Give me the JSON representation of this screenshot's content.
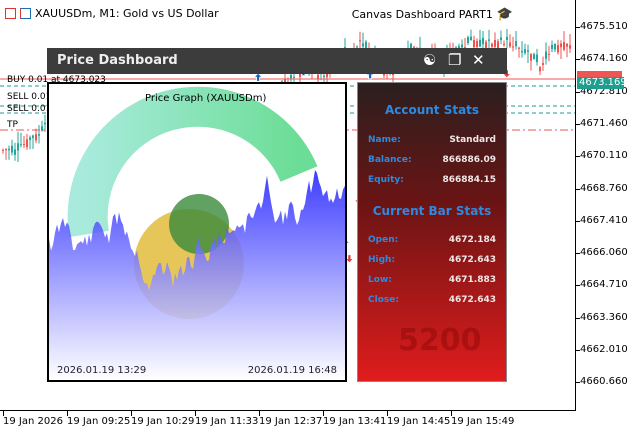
{
  "chart": {
    "symbol_title": "XAUUSDm, M1:  Gold vs US Dollar",
    "indicator_title": "Canvas Dashboard PART1",
    "price_labels": [
      "4675.510",
      "4674.160",
      "4672.810",
      "4671.460",
      "4670.110",
      "4668.760",
      "4667.410",
      "4666.060",
      "4664.710",
      "4663.360",
      "4662.010",
      "4660.660"
    ],
    "time_labels": [
      "19 Jan 2026",
      "19 Jan 09:25",
      "19 Jan 10:29",
      "19 Jan 11:33",
      "19 Jan 12:37",
      "19 Jan 13:41",
      "19 Jan 14:45",
      "19 Jan 15:49"
    ],
    "current_price": "4673.169",
    "levels": {
      "buy": "BUY 0.01 at 4673.023",
      "sell1": "SELL 0.01 at 4672.175",
      "sell2": "SELL 0.01 at 4671.868",
      "tp": "TP"
    },
    "colors": {
      "bull": "#26a69a",
      "bear": "#ef5350",
      "buy_arrow": "#1565c0",
      "sell_arrow": "#e53935"
    }
  },
  "dashboard": {
    "title": "Price Dashboard",
    "icons": [
      "theme-toggle-icon",
      "maximize-icon",
      "close-icon"
    ],
    "graph": {
      "title": "Price Graph (XAUUSDm)",
      "start": "2026.01.19 13:29",
      "end": "2026.01.19 16:48"
    },
    "account": {
      "heading": "Account Stats",
      "name_label": "Name:",
      "name": "Standard",
      "balance_label": "Balance:",
      "balance": "866886.09",
      "equity_label": "Equity:",
      "equity": "866884.15"
    },
    "bar": {
      "heading": "Current Bar Stats",
      "open_label": "Open:",
      "open": "4672.184",
      "high_label": "High:",
      "high": "4672.643",
      "low_label": "Low:",
      "low": "4671.883",
      "close_label": "Close:",
      "close": "4672.643"
    },
    "watermark": "5200"
  }
}
